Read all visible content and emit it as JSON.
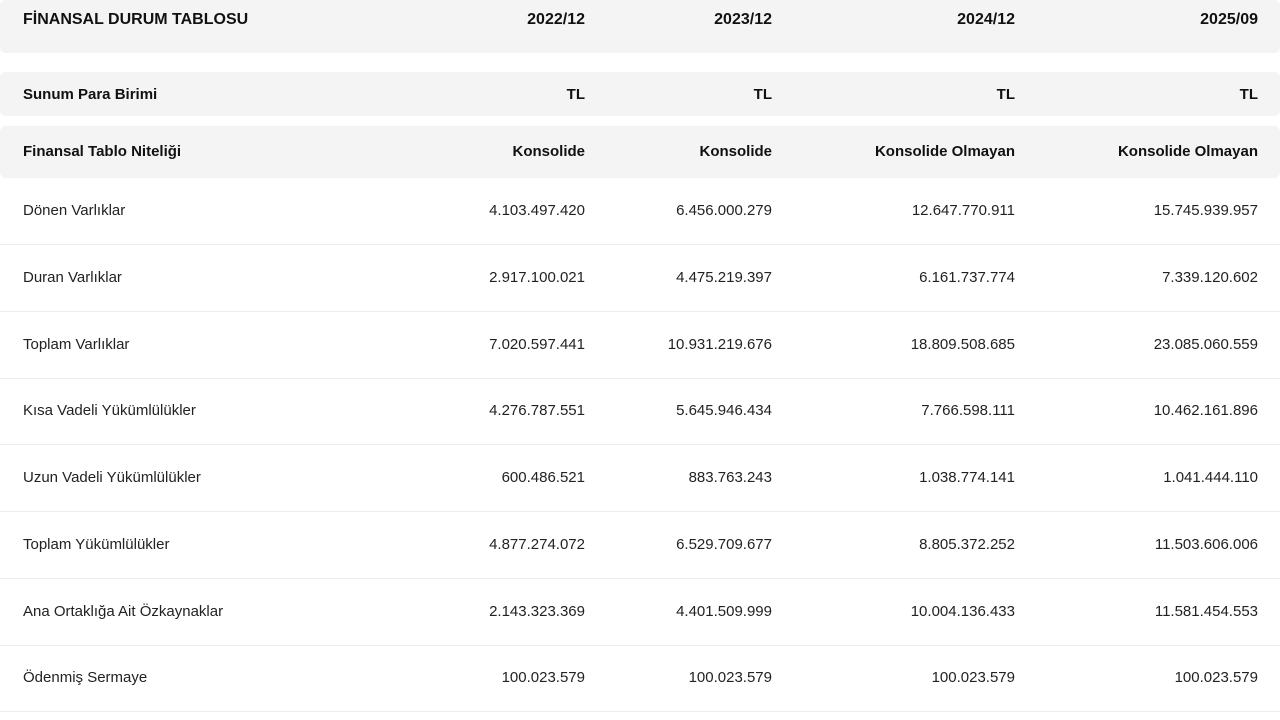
{
  "table": {
    "title": "FİNANSAL DURUM TABLOSU",
    "periods": [
      "2022/12",
      "2023/12",
      "2024/12",
      "2025/09"
    ],
    "currency_row": {
      "label": "Sunum Para Birimi",
      "values": [
        "TL",
        "TL",
        "TL",
        "TL"
      ]
    },
    "nature_row": {
      "label": "Finansal Tablo Niteliği",
      "values": [
        "Konsolide",
        "Konsolide",
        "Konsolide Olmayan",
        "Konsolide Olmayan"
      ]
    },
    "rows": [
      {
        "label": "Dönen Varlıklar",
        "values": [
          "4.103.497.420",
          "6.456.000.279",
          "12.647.770.911",
          "15.745.939.957"
        ]
      },
      {
        "label": "Duran Varlıklar",
        "values": [
          "2.917.100.021",
          "4.475.219.397",
          "6.161.737.774",
          "7.339.120.602"
        ]
      },
      {
        "label": "Toplam Varlıklar",
        "values": [
          "7.020.597.441",
          "10.931.219.676",
          "18.809.508.685",
          "23.085.060.559"
        ]
      },
      {
        "label": "Kısa Vadeli Yükümlülükler",
        "values": [
          "4.276.787.551",
          "5.645.946.434",
          "7.766.598.111",
          "10.462.161.896"
        ]
      },
      {
        "label": "Uzun Vadeli Yükümlülükler",
        "values": [
          "600.486.521",
          "883.763.243",
          "1.038.774.141",
          "1.041.444.110"
        ]
      },
      {
        "label": "Toplam Yükümlülükler",
        "values": [
          "4.877.274.072",
          "6.529.709.677",
          "8.805.372.252",
          "11.503.606.006"
        ]
      },
      {
        "label": "Ana Ortaklığa Ait Özkaynaklar",
        "values": [
          "2.143.323.369",
          "4.401.509.999",
          "10.004.136.433",
          "11.581.454.553"
        ]
      },
      {
        "label": "Ödenmiş Sermaye",
        "values": [
          "100.023.579",
          "100.023.579",
          "100.023.579",
          "100.023.579"
        ]
      }
    ]
  }
}
